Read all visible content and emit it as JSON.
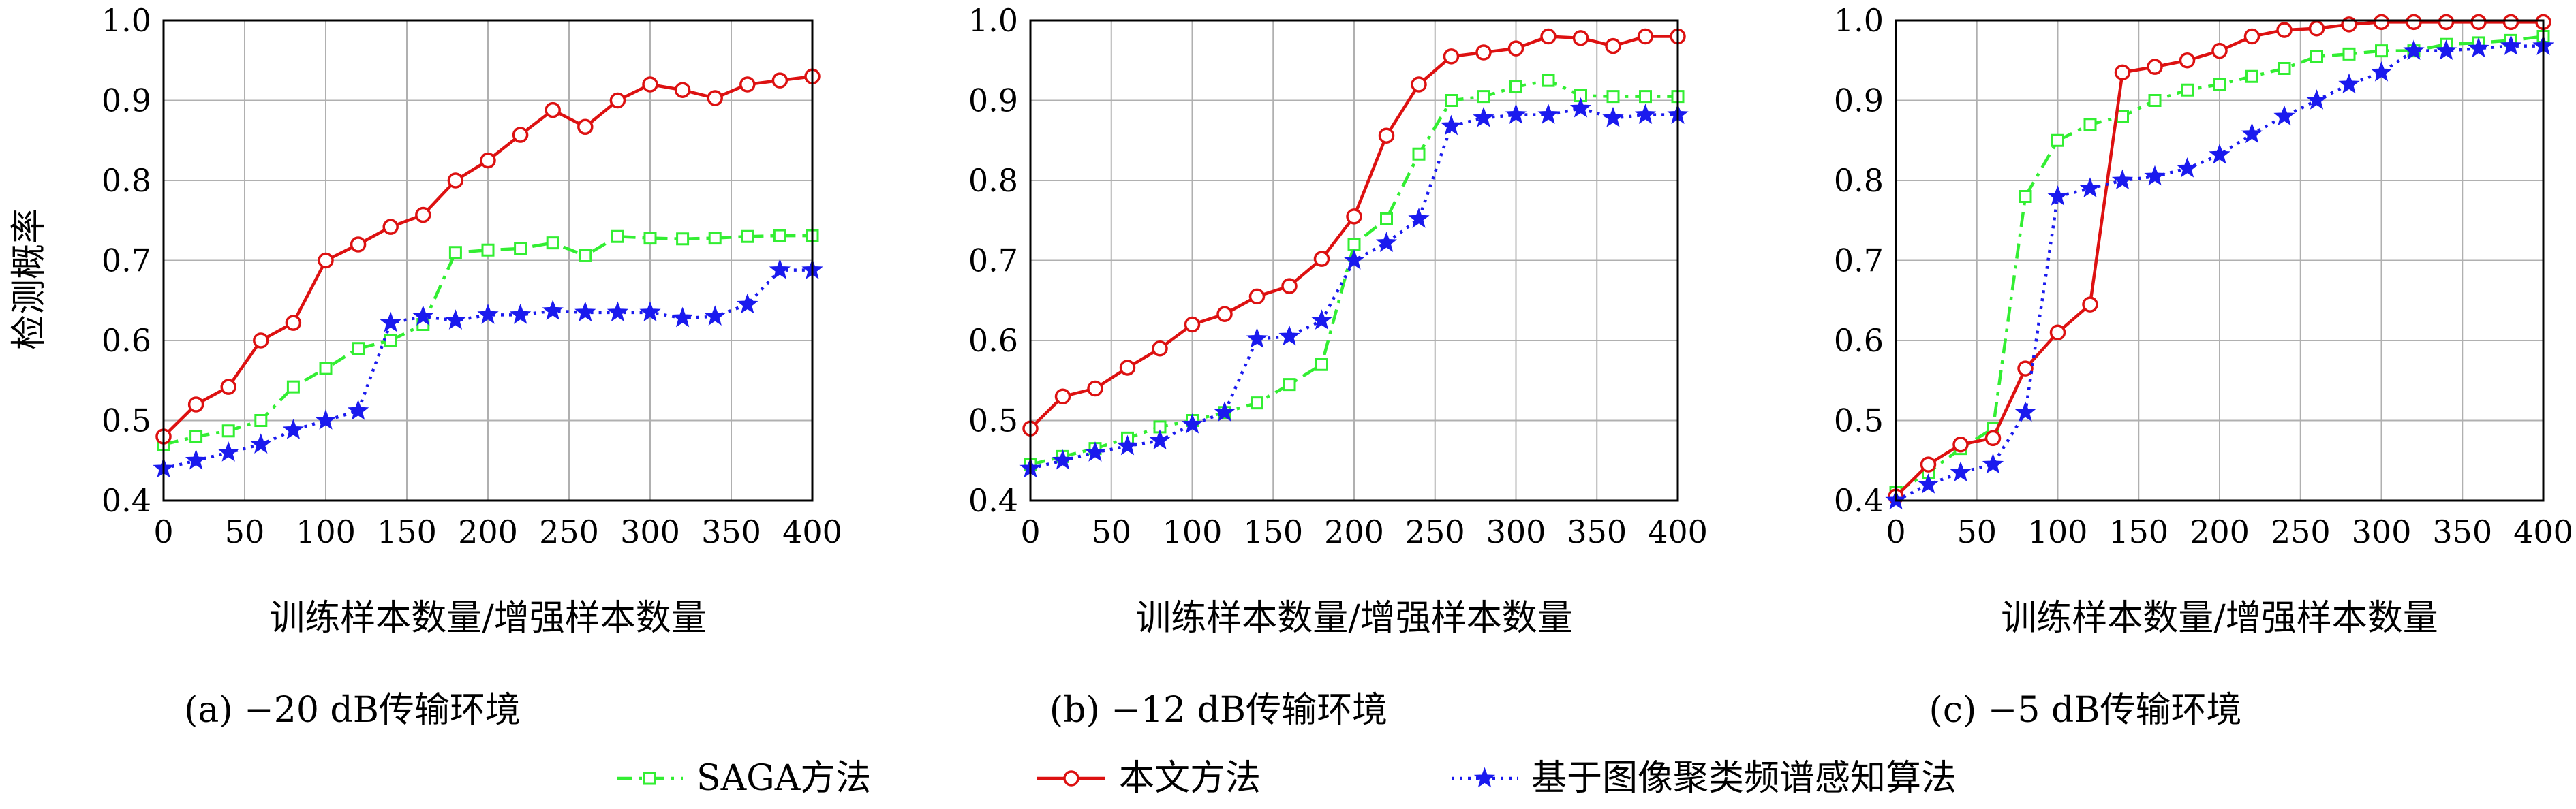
{
  "figure": {
    "y_axis_label": "检测概率",
    "legend": [
      {
        "name": "SAGA方法",
        "color": "#33ee33",
        "dash": "22 10 5 10",
        "marker": "square"
      },
      {
        "name": "本文方法",
        "color": "#dd1111",
        "dash": "",
        "marker": "circle"
      },
      {
        "name": "基于图像聚类频谱感知算法",
        "color": "#1a1aee",
        "dash": "4 8",
        "marker": "star"
      }
    ]
  },
  "chart_data": [
    {
      "type": "line",
      "caption": "(a) −20 dB传输环境",
      "xlabel": "训练样本数量/增强样本数量",
      "ylabel": "检测概率",
      "xlim": [
        0,
        400
      ],
      "ylim": [
        0.4,
        1.0
      ],
      "xticks": [
        0,
        50,
        100,
        150,
        200,
        250,
        300,
        350,
        400
      ],
      "yticks": [
        0.4,
        0.5,
        0.6,
        0.7,
        0.8,
        0.9,
        1.0
      ],
      "grid": true,
      "x": [
        0,
        20,
        40,
        60,
        80,
        100,
        120,
        140,
        160,
        180,
        200,
        220,
        240,
        260,
        280,
        300,
        320,
        340,
        360,
        380,
        400
      ],
      "series": [
        {
          "name": "SAGA方法",
          "values": [
            0.47,
            0.48,
            0.487,
            0.5,
            0.542,
            0.565,
            0.59,
            0.6,
            0.62,
            0.71,
            0.713,
            0.715,
            0.722,
            0.706,
            0.73,
            0.728,
            0.727,
            0.728,
            0.73,
            0.731,
            0.731
          ]
        },
        {
          "name": "本文方法",
          "values": [
            0.48,
            0.52,
            0.542,
            0.6,
            0.622,
            0.7,
            0.72,
            0.742,
            0.757,
            0.8,
            0.825,
            0.857,
            0.888,
            0.867,
            0.9,
            0.92,
            0.913,
            0.903,
            0.92,
            0.925,
            0.93
          ]
        },
        {
          "name": "基于图像聚类频谱感知算法",
          "values": [
            0.44,
            0.45,
            0.46,
            0.47,
            0.488,
            0.5,
            0.512,
            0.622,
            0.63,
            0.625,
            0.632,
            0.632,
            0.637,
            0.635,
            0.635,
            0.635,
            0.628,
            0.63,
            0.645,
            0.688,
            0.688
          ]
        }
      ]
    },
    {
      "type": "line",
      "caption": "(b) −12 dB传输环境",
      "xlabel": "训练样本数量/增强样本数量",
      "ylabel": "",
      "xlim": [
        0,
        400
      ],
      "ylim": [
        0.4,
        1.0
      ],
      "xticks": [
        0,
        50,
        100,
        150,
        200,
        250,
        300,
        350,
        400
      ],
      "yticks": [
        0.4,
        0.5,
        0.6,
        0.7,
        0.8,
        0.9,
        1.0
      ],
      "grid": true,
      "x": [
        0,
        20,
        40,
        60,
        80,
        100,
        120,
        140,
        160,
        180,
        200,
        220,
        240,
        260,
        280,
        300,
        320,
        340,
        360,
        380,
        400
      ],
      "series": [
        {
          "name": "SAGA方法",
          "values": [
            0.445,
            0.455,
            0.465,
            0.478,
            0.492,
            0.5,
            0.51,
            0.522,
            0.545,
            0.57,
            0.72,
            0.752,
            0.833,
            0.9,
            0.905,
            0.917,
            0.925,
            0.906,
            0.905,
            0.905,
            0.905
          ]
        },
        {
          "name": "本文方法",
          "values": [
            0.49,
            0.53,
            0.54,
            0.566,
            0.59,
            0.62,
            0.633,
            0.655,
            0.668,
            0.702,
            0.755,
            0.856,
            0.92,
            0.955,
            0.96,
            0.965,
            0.98,
            0.978,
            0.968,
            0.98,
            0.98
          ]
        },
        {
          "name": "基于图像聚类频谱感知算法",
          "values": [
            0.44,
            0.45,
            0.46,
            0.468,
            0.475,
            0.495,
            0.51,
            0.602,
            0.605,
            0.625,
            0.7,
            0.722,
            0.752,
            0.868,
            0.878,
            0.882,
            0.882,
            0.89,
            0.878,
            0.882,
            0.882
          ]
        }
      ]
    },
    {
      "type": "line",
      "caption": "(c) −5 dB传输环境",
      "xlabel": "训练样本数量/增强样本数量",
      "ylabel": "",
      "xlim": [
        0,
        400
      ],
      "ylim": [
        0.4,
        1.0
      ],
      "xticks": [
        0,
        50,
        100,
        150,
        200,
        250,
        300,
        350,
        400
      ],
      "yticks": [
        0.4,
        0.5,
        0.6,
        0.7,
        0.8,
        0.9,
        1.0
      ],
      "grid": true,
      "x": [
        0,
        20,
        40,
        60,
        80,
        100,
        120,
        140,
        160,
        180,
        200,
        220,
        240,
        260,
        280,
        300,
        320,
        340,
        360,
        380,
        400
      ],
      "series": [
        {
          "name": "SAGA方法",
          "values": [
            0.41,
            0.435,
            0.465,
            0.49,
            0.78,
            0.85,
            0.87,
            0.88,
            0.9,
            0.913,
            0.92,
            0.93,
            0.94,
            0.955,
            0.958,
            0.962,
            0.962,
            0.97,
            0.972,
            0.975,
            0.98
          ]
        },
        {
          "name": "本文方法",
          "values": [
            0.405,
            0.445,
            0.47,
            0.478,
            0.565,
            0.61,
            0.645,
            0.935,
            0.942,
            0.95,
            0.962,
            0.98,
            0.988,
            0.99,
            0.995,
            0.998,
            0.998,
            0.998,
            0.998,
            0.998,
            0.998
          ]
        },
        {
          "name": "基于图像聚类频谱感知算法",
          "values": [
            0.4,
            0.42,
            0.435,
            0.445,
            0.51,
            0.78,
            0.79,
            0.8,
            0.805,
            0.815,
            0.832,
            0.858,
            0.88,
            0.9,
            0.92,
            0.935,
            0.962,
            0.962,
            0.965,
            0.968,
            0.968
          ]
        }
      ]
    }
  ]
}
